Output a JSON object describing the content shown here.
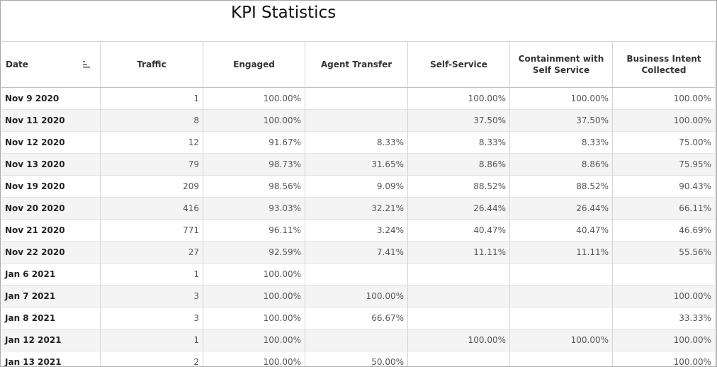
{
  "header": {
    "title": "KPI Statistics"
  },
  "table": {
    "columns": [
      "Date",
      "Traffic",
      "Engaged",
      "Agent Transfer",
      "Self-Service",
      "Containment with Self Service",
      "Business Intent Collected"
    ],
    "rows": [
      [
        "Nov 9 2020",
        "1",
        "100.00%",
        null,
        "100.00%",
        "100.00%",
        "100.00%"
      ],
      [
        "Nov 11 2020",
        "8",
        "100.00%",
        null,
        "37.50%",
        "37.50%",
        "100.00%"
      ],
      [
        "Nov 12 2020",
        "12",
        "91.67%",
        "8.33%",
        "8.33%",
        "8.33%",
        "75.00%"
      ],
      [
        "Nov 13 2020",
        "79",
        "98.73%",
        "31.65%",
        "8.86%",
        "8.86%",
        "75.95%"
      ],
      [
        "Nov 19 2020",
        "209",
        "98.56%",
        "9.09%",
        "88.52%",
        "88.52%",
        "90.43%"
      ],
      [
        "Nov 20 2020",
        "416",
        "93.03%",
        "32.21%",
        "26.44%",
        "26.44%",
        "66.11%"
      ],
      [
        "Nov 21 2020",
        "771",
        "96.11%",
        "3.24%",
        "40.47%",
        "40.47%",
        "46.69%"
      ],
      [
        "Nov 22 2020",
        "27",
        "92.59%",
        "7.41%",
        "11.11%",
        "11.11%",
        "55.56%"
      ],
      [
        "Jan 6 2021",
        "1",
        "100.00%",
        null,
        null,
        null,
        null
      ],
      [
        "Jan 7 2021",
        "3",
        "100.00%",
        "100.00%",
        null,
        null,
        "100.00%"
      ],
      [
        "Jan 8 2021",
        "3",
        "100.00%",
        "66.67%",
        null,
        null,
        "33.33%"
      ],
      [
        "Jan 12 2021",
        "1",
        "100.00%",
        null,
        "100.00%",
        "100.00%",
        "100.00%"
      ],
      [
        "Jan 13 2021",
        "2",
        "100.00%",
        "50.00%",
        null,
        null,
        "100.00%"
      ]
    ]
  }
}
